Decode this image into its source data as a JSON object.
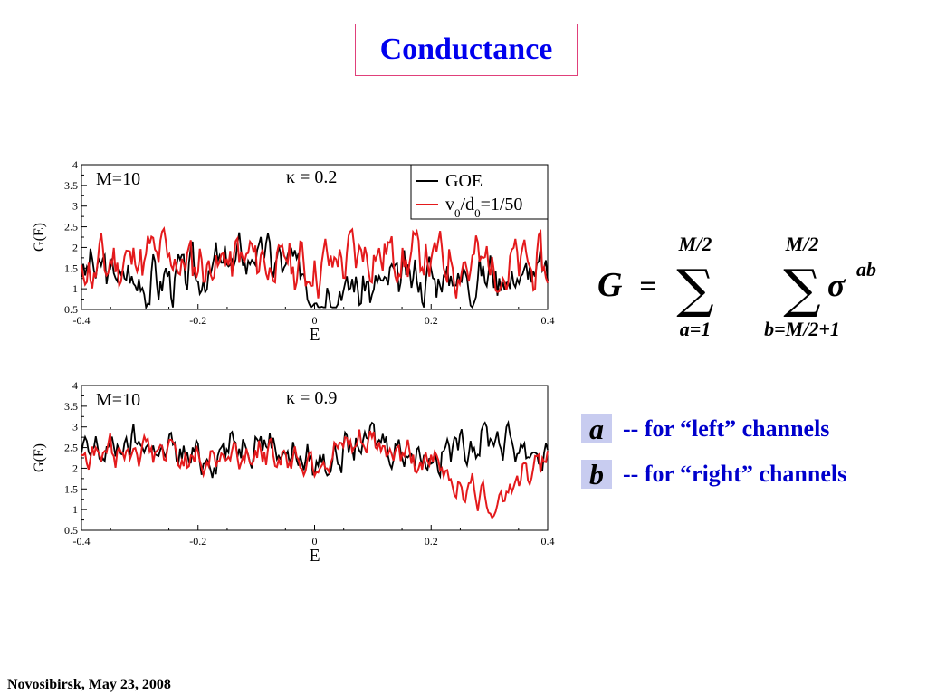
{
  "title": "Conductance",
  "footer": "Novosibirsk,  May 23,  2008",
  "legend": {
    "a_key": "a",
    "a_text": "-- for “left” channels",
    "b_key": "b",
    "b_text": "-- for “right” channels"
  },
  "formula": {
    "lhs": "G",
    "eq": "=",
    "sum1_upper": "M/2",
    "sum1_lower": "a=1",
    "sum2_upper": "M/2",
    "sum2_lower": "b=M/2+1",
    "symbol": "σ",
    "superscript": "ab"
  },
  "chart_data": [
    {
      "type": "line",
      "xlabel": "E",
      "ylabel": "G(E)",
      "xlim": [
        -0.4,
        0.4
      ],
      "ylim": [
        0.5,
        4
      ],
      "xticks": [
        "-0.4",
        "-0.2",
        "0",
        "0.2",
        "0.4"
      ],
      "yticks": [
        "0.5",
        "1",
        "1.5",
        "2",
        "2.5",
        "3",
        "3.5",
        "4"
      ],
      "annotation_left": "M=10",
      "annotation_kappa": "κ = 0.2",
      "legend": {
        "show": true,
        "placement": "top-right",
        "series_1": "GOE",
        "series_2_main": "v",
        "series_2_sub1": "0",
        "series_2_mid": "/d",
        "series_2_sub2": "0",
        "series_2_tail": "=1/50"
      },
      "series": [
        {
          "name": "GOE",
          "color": "#000000",
          "mean": 1.35,
          "amp": 0.55,
          "seed": 3,
          "x": [
            -0.4,
            -0.3,
            -0.2,
            -0.1,
            0.0,
            0.1,
            0.2,
            0.3,
            0.4
          ],
          "y": [
            1.5,
            1.2,
            1.3,
            1.9,
            1.2,
            1.0,
            1.3,
            1.4,
            1.3
          ]
        },
        {
          "name": "v0/d0=1/50",
          "color": "#e41a1c",
          "mean": 1.6,
          "amp": 0.6,
          "seed": 11,
          "x": [
            -0.4,
            -0.3,
            -0.2,
            -0.1,
            0.0,
            0.1,
            0.2,
            0.3,
            0.4
          ],
          "y": [
            1.4,
            1.8,
            1.6,
            1.7,
            1.5,
            1.9,
            1.7,
            1.6,
            1.5
          ]
        }
      ]
    },
    {
      "type": "line",
      "xlabel": "E",
      "ylabel": "G(E)",
      "xlim": [
        -0.4,
        0.4
      ],
      "ylim": [
        0.5,
        4
      ],
      "xticks": [
        "-0.4",
        "-0.2",
        "0",
        "0.2",
        "0.4"
      ],
      "yticks": [
        "0.5",
        "1",
        "1.5",
        "2",
        "2.5",
        "3",
        "3.5",
        "4"
      ],
      "annotation_left": "M=10",
      "annotation_kappa": "κ = 0.9",
      "legend": {
        "show": false
      },
      "series": [
        {
          "name": "GOE",
          "color": "#000000",
          "mean": 2.4,
          "amp": 0.4,
          "seed": 7,
          "x": [
            -0.4,
            -0.3,
            -0.2,
            -0.1,
            0.0,
            0.1,
            0.2,
            0.3,
            0.4
          ],
          "y": [
            2.3,
            2.6,
            2.2,
            2.8,
            2.1,
            2.7,
            2.3,
            2.8,
            2.3
          ]
        },
        {
          "name": "v0/d0=1/50",
          "color": "#e41a1c",
          "mean": 2.3,
          "amp": 0.35,
          "seed": 19,
          "x": [
            -0.4,
            -0.3,
            -0.2,
            -0.1,
            0.0,
            0.1,
            0.2,
            0.3,
            0.4
          ],
          "y": [
            2.3,
            2.5,
            2.2,
            2.4,
            2.2,
            2.6,
            2.1,
            1.2,
            2.2
          ]
        }
      ]
    }
  ]
}
